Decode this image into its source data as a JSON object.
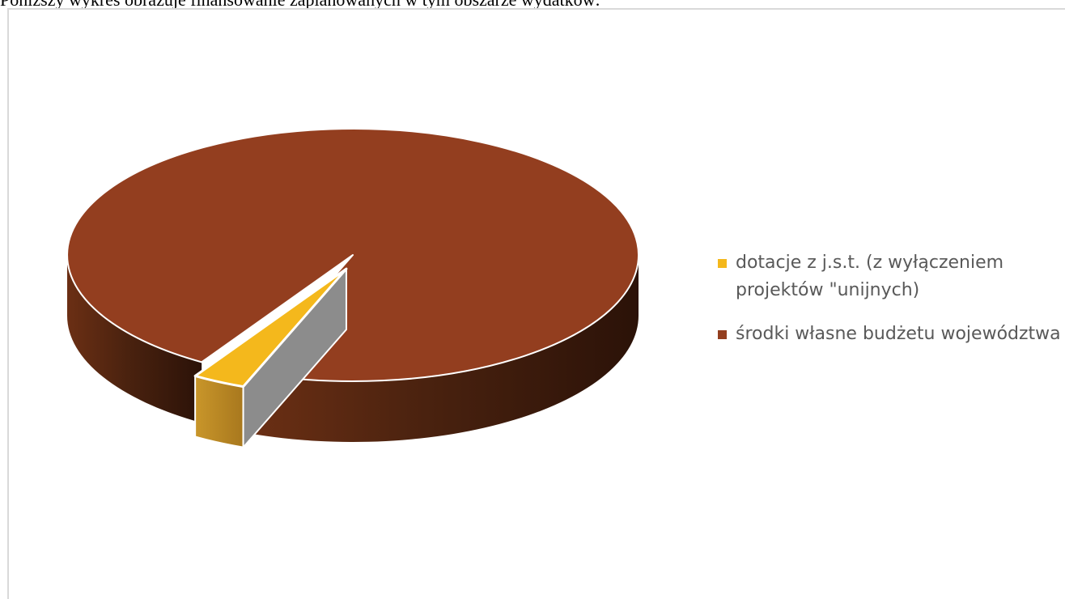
{
  "document": {
    "intro_text": "Poniższy wykres obrazuje finansowanie zaplanowanych w tym obszarze wydatków:"
  },
  "chart_data": {
    "type": "pie",
    "title": "",
    "style": "3d-exploded",
    "legend_position": "right",
    "slices": [
      {
        "label": "dotacje z j.s.t. (z wyłączeniem projektów \"unijnych)",
        "value": 3,
        "color": "#f4b81c",
        "exploded": true
      },
      {
        "label": "środki własne budżetu województwa",
        "value": 97,
        "color": "#933e1f",
        "exploded": false
      }
    ]
  }
}
